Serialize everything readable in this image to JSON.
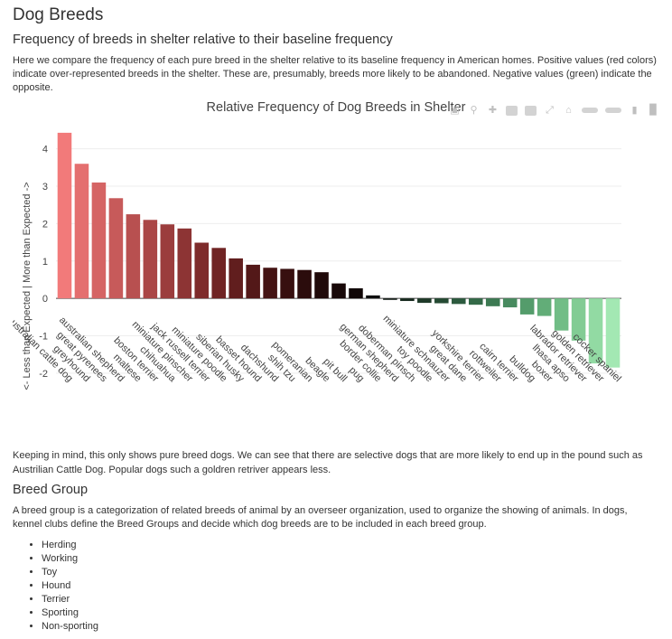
{
  "page": {
    "title": "Dog Breeds",
    "subtitle": "Frequency of breeds in shelter relative to their baseline frequency",
    "intro": "Here we compare the frequency of each pure breed in the shelter relative to its baseline frequency in American homes. Positive values (red colors) indicate over-represented breeds in the shelter. These are, presumably, breeds more likely to be abandoned. Negative values (green) indicate the opposite.",
    "after_chart": "Keeping in mind, this only shows pure breed dogs. We can see that there are selective dogs that are more likely to end up in the pound such as Austrilian Cattle Dog. Popular dogs such a goldren retriver appears less.",
    "group_heading": "Breed Group",
    "group_description": "A breed group is a categorization of related breeds of animal by an overseer organization, used to organize the showing of animals. In dogs, kennel clubs define the Breed Groups and decide which dog breeds are to be included in each breed group.",
    "groups": [
      "Herding",
      "Working",
      "Toy",
      "Hound",
      "Terrier",
      "Sporting",
      "Non-sporting"
    ]
  },
  "modebar_icons": [
    "camera-icon",
    "zoom-icon",
    "pan-icon",
    "zoom-in-icon",
    "zoom-out-icon",
    "autoscale-icon",
    "home-icon",
    "spike-lines-icon",
    "compare-hover-icon",
    "closest-hover-icon",
    "plotly-logo-icon"
  ],
  "chart_data": {
    "type": "bar",
    "title": "Relative Frequency of Dog Breeds in Shelter",
    "ylabel": "<- Less than Expected | More than Expected ->",
    "xlabel": "",
    "ylim": [
      -2.1,
      4.5
    ],
    "yticks": [
      -2,
      -1,
      0,
      1,
      2,
      3,
      4
    ],
    "grid": true,
    "legend": "none",
    "categories": [
      "australian cattle dog",
      "greyhound",
      "great pyrenees",
      "australian shepherd",
      "maltese",
      "boston terrier",
      "chihuahua",
      "miniature pinscher",
      "jack russell terrier",
      "miniature poodle",
      "siberian husky",
      "basset hound",
      "dachshund",
      "shih tzu",
      "pomeranian",
      "beagle",
      "pit bull",
      "pug",
      "border collie",
      "german shepherd",
      "doberman pinsch",
      "toy poodle",
      "miniature schnauzer",
      "great dane",
      "yorkshire terrier",
      "rottweiler",
      "cairn terrier",
      "bulldog",
      "boxer",
      "lhasa apso",
      "labrador retriever",
      "golden retriever",
      "cocker spaniel"
    ],
    "values": [
      4.43,
      3.6,
      3.1,
      2.68,
      2.25,
      2.1,
      1.98,
      1.87,
      1.49,
      1.35,
      1.07,
      0.9,
      0.82,
      0.79,
      0.76,
      0.7,
      0.4,
      0.27,
      0.08,
      -0.04,
      -0.07,
      -0.12,
      -0.13,
      -0.15,
      -0.17,
      -0.21,
      -0.24,
      -0.43,
      -0.47,
      -0.86,
      -1.13,
      -1.74,
      -1.85
    ],
    "colors": [
      "#f27a7a",
      "#e46f6f",
      "#d56464",
      "#c75a5a",
      "#b85050",
      "#aa4646",
      "#9b3d3d",
      "#8d3434",
      "#7e2b2b",
      "#702424",
      "#611e1e",
      "#531818",
      "#441313",
      "#370f0f",
      "#2b0c0c",
      "#200a0a",
      "#180808",
      "#110707",
      "#0f0f0f",
      "#141d17",
      "#192b20",
      "#1f3a29",
      "#254a33",
      "#2c5a3e",
      "#346a48",
      "#3d7a53",
      "#488b5f",
      "#549c6b",
      "#62ad78",
      "#71bd86",
      "#82cc94",
      "#92daa3",
      "#a3e8b3"
    ]
  }
}
